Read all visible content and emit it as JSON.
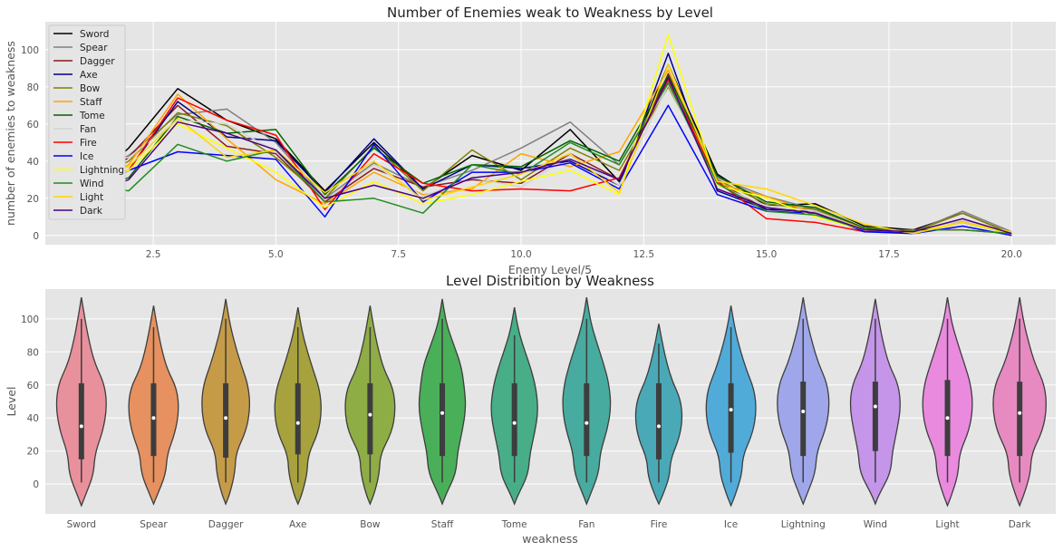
{
  "chart_data": [
    {
      "type": "line",
      "title": "Number of Enemies weak to Weakness by Level",
      "xlabel": "Enemy Level/5",
      "ylabel": "number of enemies to weakness",
      "xlim": [
        0.3,
        20.9
      ],
      "ylim": [
        -5,
        115
      ],
      "xticks": [
        "2.5",
        "5.0",
        "7.5",
        "10.0",
        "12.5",
        "15.0",
        "17.5",
        "20.0"
      ],
      "yticks": [
        "0",
        "20",
        "40",
        "60",
        "80",
        "100"
      ],
      "grid": true,
      "legend": "upper-left",
      "x": [
        1,
        2,
        3,
        4,
        5,
        6,
        7,
        8,
        9,
        10,
        11,
        12,
        13,
        14,
        15,
        16,
        17,
        18,
        19,
        20
      ],
      "series": [
        {
          "name": "Sword",
          "color": "#000000",
          "values": [
            24,
            47,
            79,
            62,
            52,
            24,
            50,
            25,
            43,
            35,
            57,
            29,
            92,
            33,
            16,
            17,
            5,
            3,
            12,
            1
          ]
        },
        {
          "name": "Spear",
          "color": "#808080",
          "values": [
            30,
            43,
            65,
            68,
            50,
            20,
            39,
            26,
            35,
            47,
            61,
            38,
            83,
            31,
            21,
            14,
            4,
            2,
            13,
            2
          ]
        },
        {
          "name": "Dagger",
          "color": "#8b1a1a",
          "values": [
            22,
            42,
            70,
            48,
            44,
            18,
            36,
            26,
            30,
            28,
            44,
            30,
            87,
            29,
            14,
            13,
            2,
            2,
            8,
            1
          ]
        },
        {
          "name": "Axe",
          "color": "#00008b",
          "values": [
            21,
            35,
            72,
            53,
            51,
            23,
            52,
            25,
            38,
            36,
            40,
            27,
            98,
            24,
            14,
            13,
            3,
            2,
            7,
            1
          ]
        },
        {
          "name": "Bow",
          "color": "#808000",
          "values": [
            26,
            40,
            66,
            59,
            42,
            20,
            48,
            24,
            46,
            30,
            47,
            35,
            80,
            30,
            17,
            14,
            4,
            2,
            12,
            1
          ]
        },
        {
          "name": "Staff",
          "color": "#ffa500",
          "values": [
            25,
            38,
            76,
            52,
            30,
            17,
            34,
            22,
            25,
            44,
            37,
            45,
            89,
            28,
            21,
            12,
            4,
            2,
            7,
            1
          ]
        },
        {
          "name": "Tome",
          "color": "#006400",
          "values": [
            25,
            31,
            64,
            55,
            57,
            22,
            47,
            28,
            38,
            37,
            51,
            40,
            86,
            32,
            18,
            15,
            4,
            2,
            7,
            1
          ]
        },
        {
          "name": "Fan",
          "color": "#d3d3d3",
          "values": [
            38,
            42,
            62,
            60,
            45,
            19,
            38,
            21,
            31,
            26,
            43,
            27,
            81,
            27,
            16,
            13,
            3,
            2,
            8,
            1
          ]
        },
        {
          "name": "Fire",
          "color": "#ff0000",
          "values": [
            23,
            35,
            74,
            62,
            54,
            14,
            44,
            28,
            24,
            25,
            24,
            31,
            84,
            29,
            9,
            7,
            2,
            3,
            3,
            1
          ]
        },
        {
          "name": "Ice",
          "color": "#0000ff",
          "values": [
            27,
            35,
            45,
            43,
            41,
            10,
            49,
            18,
            34,
            34,
            39,
            25,
            70,
            22,
            13,
            12,
            2,
            1,
            5,
            0
          ]
        },
        {
          "name": "Lightning",
          "color": "#ffff00",
          "values": [
            25,
            35,
            60,
            47,
            34,
            15,
            29,
            17,
            22,
            29,
            35,
            22,
            108,
            27,
            20,
            10,
            3,
            2,
            7,
            1
          ]
        },
        {
          "name": "Wind",
          "color": "#228b22",
          "values": [
            28,
            24,
            49,
            40,
            46,
            18,
            20,
            12,
            38,
            33,
            50,
            38,
            82,
            28,
            13,
            11,
            3,
            3,
            3,
            1
          ]
        },
        {
          "name": "Light",
          "color": "#ffd700",
          "values": [
            28,
            37,
            63,
            42,
            46,
            23,
            40,
            19,
            26,
            33,
            44,
            23,
            92,
            29,
            25,
            16,
            6,
            1,
            7,
            2
          ]
        },
        {
          "name": "Dark",
          "color": "#4b0082",
          "values": [
            21,
            30,
            61,
            55,
            46,
            20,
            27,
            20,
            31,
            34,
            41,
            30,
            85,
            25,
            15,
            12,
            3,
            2,
            9,
            1
          ]
        }
      ]
    },
    {
      "type": "violin",
      "title": "Level Distribition by Weakness",
      "xlabel": "weakness",
      "ylabel": "Level",
      "ylim": [
        -18,
        118
      ],
      "yticks": [
        "0",
        "20",
        "40",
        "60",
        "80",
        "100"
      ],
      "grid": true,
      "categories": [
        "Sword",
        "Spear",
        "Dagger",
        "Axe",
        "Bow",
        "Staff",
        "Tome",
        "Fan",
        "Fire",
        "Ice",
        "Lightning",
        "Wind",
        "Light",
        "Dark"
      ],
      "colors": [
        "#e8919c",
        "#e6915f",
        "#c59b48",
        "#a7a23e",
        "#8ead45",
        "#4aaf59",
        "#47ae88",
        "#48ab9f",
        "#4aa9b6",
        "#51abd9",
        "#9fa7ea",
        "#c495e8",
        "#e98adf",
        "#e78ac1"
      ],
      "medians": [
        35,
        40,
        40,
        37,
        42,
        43,
        37,
        37,
        35,
        45,
        44,
        47,
        40,
        43
      ],
      "q1": [
        15,
        17,
        16,
        18,
        18,
        17,
        17,
        17,
        15,
        19,
        17,
        20,
        17,
        17
      ],
      "q3": [
        61,
        61,
        61,
        61,
        61,
        61,
        61,
        61,
        61,
        61,
        62,
        62,
        63,
        62
      ],
      "min": [
        1,
        1,
        1,
        1,
        1,
        1,
        1,
        1,
        1,
        1,
        1,
        1,
        1,
        1
      ],
      "max": [
        100,
        95,
        100,
        95,
        95,
        100,
        90,
        100,
        85,
        95,
        100,
        100,
        100,
        100
      ],
      "extent": [
        [
          -13,
          113
        ],
        [
          -12,
          108
        ],
        [
          -12,
          112
        ],
        [
          -12,
          107
        ],
        [
          -12,
          108
        ],
        [
          -12,
          112
        ],
        [
          -12,
          107
        ],
        [
          -12,
          113
        ],
        [
          -12,
          97
        ],
        [
          -13,
          108
        ],
        [
          -12,
          113
        ],
        [
          -12,
          112
        ],
        [
          -13,
          113
        ],
        [
          -13,
          113
        ]
      ],
      "width": [
        [
          0.4,
          0.75,
          0.4
        ],
        [
          0.4,
          0.75,
          0.4
        ],
        [
          0.3,
          0.72,
          0.45
        ],
        [
          0.3,
          0.7,
          0.45
        ],
        [
          0.3,
          0.75,
          0.4
        ],
        [
          0.45,
          0.7,
          0.55
        ],
        [
          0.45,
          0.7,
          0.5
        ],
        [
          0.4,
          0.72,
          0.5
        ],
        [
          0.35,
          0.7,
          0.4
        ],
        [
          0.35,
          0.75,
          0.45
        ],
        [
          0.4,
          0.78,
          0.45
        ],
        [
          0.5,
          0.75,
          0.4
        ],
        [
          0.35,
          0.75,
          0.5
        ],
        [
          0.35,
          0.8,
          0.45
        ]
      ]
    }
  ]
}
